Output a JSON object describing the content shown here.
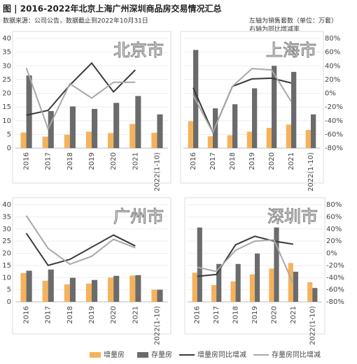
{
  "header": {
    "title": "图 | 2016-2022年北京上海广州深圳商品房交易情况汇总",
    "source": "数据来源：公司公告，数据截止到2022年10月31日",
    "notes": [
      "左轴为销售套数（单位：万套）",
      "右轴为同比增减率"
    ]
  },
  "chart_data": [
    {
      "type": "combo",
      "title": "北京市",
      "categories": [
        "2016",
        "2017",
        "2018",
        "2019",
        "2020",
        "2021",
        "2022(1-10)"
      ],
      "series": [
        {
          "name": "增量房",
          "type": "bar",
          "color": "#f5b25c",
          "values": [
            5.7,
            4.2,
            4.9,
            6,
            5.5,
            8.8,
            5.6
          ]
        },
        {
          "name": "存量房",
          "type": "bar",
          "color": "#6b6b6b",
          "values": [
            26.5,
            13.5,
            15.2,
            14.3,
            16.5,
            19,
            12.3
          ]
        },
        {
          "name": "增量房同比增减",
          "type": "line",
          "axis": "y2",
          "color": "#3a3a3a",
          "values": [
            -32,
            -25,
            12,
            44,
            2,
            34,
            null
          ]
        },
        {
          "name": "存量房同比增减",
          "type": "line",
          "axis": "y2",
          "color": "#a8a8a8",
          "values": [
            37,
            -52,
            14,
            -7,
            16,
            16,
            null
          ]
        }
      ],
      "ylim": [
        0,
        40
      ],
      "yticks": [
        0,
        5,
        10,
        15,
        20,
        25,
        30,
        35,
        40
      ],
      "y2lim": [
        -80,
        80
      ]
    },
    {
      "type": "combo",
      "title": "上海市",
      "categories": [
        "2016",
        "2017",
        "2018",
        "2019",
        "2020",
        "2021",
        "2022(1-10)"
      ],
      "series": [
        {
          "type": "bar",
          "color": "#f5b25c",
          "values": [
            9.8,
            4.3,
            4.7,
            6,
            7.4,
            8.6,
            6.6
          ]
        },
        {
          "type": "bar",
          "color": "#6b6b6b",
          "values": [
            35.8,
            14.5,
            16,
            21.8,
            30,
            27.8,
            12.3
          ]
        },
        {
          "type": "line",
          "axis": "y2",
          "color": "#3a3a3a",
          "values": [
            8,
            -57,
            10,
            21,
            22,
            15,
            null
          ]
        },
        {
          "type": "line",
          "axis": "y2",
          "color": "#a8a8a8",
          "values": [
            -3,
            -57,
            10,
            36,
            34,
            -12,
            null
          ]
        }
      ],
      "ylim": [
        0,
        40
      ],
      "y2lim": [
        -80,
        80
      ],
      "y2ticks": [
        {
          "value": -80,
          "label": "-80%"
        },
        {
          "value": -60,
          "label": "-60%"
        },
        {
          "value": -40,
          "label": "-40%"
        },
        {
          "value": -20,
          "label": "-20%"
        },
        {
          "value": 0,
          "label": "0%"
        },
        {
          "value": 20,
          "label": "20%"
        },
        {
          "value": 40,
          "label": "40%"
        },
        {
          "value": 60,
          "label": "60%"
        },
        {
          "value": 80,
          "label": "80%"
        }
      ]
    },
    {
      "type": "combo",
      "title": "广州市",
      "categories": [
        "2016",
        "2017",
        "2018",
        "2019",
        "2020",
        "2021",
        "2022(1-10)"
      ],
      "series": [
        {
          "type": "bar",
          "color": "#f5b25c",
          "values": [
            11.8,
            8.7,
            7.2,
            7.5,
            10,
            10.8,
            5
          ]
        },
        {
          "type": "bar",
          "color": "#6b6b6b",
          "values": [
            12.8,
            13.3,
            9.9,
            9,
            10.7,
            11,
            5
          ]
        },
        {
          "type": "line",
          "axis": "y2",
          "color": "#3a3a3a",
          "values": [
            33,
            -20,
            -10,
            10,
            30,
            12,
            null
          ]
        },
        {
          "type": "line",
          "axis": "y2",
          "color": "#a8a8a8",
          "values": [
            62,
            8,
            -18,
            -5,
            23,
            9,
            null
          ]
        }
      ],
      "ylim": [
        0,
        40
      ],
      "yticks": [
        0,
        5,
        10,
        15,
        20,
        25,
        30,
        35,
        40
      ],
      "y2lim": [
        -80,
        80
      ]
    },
    {
      "type": "combo",
      "title": "深圳市",
      "categories": [
        "2016",
        "2017",
        "2018",
        "2019",
        "2020",
        "2021",
        "2022(1-10)"
      ],
      "series": [
        {
          "type": "bar",
          "color": "#f5b25c",
          "values": [
            12,
            6.9,
            8.4,
            11.3,
            13.7,
            16,
            8.1
          ]
        },
        {
          "type": "bar",
          "color": "#6b6b6b",
          "values": [
            30.6,
            15.6,
            15.6,
            19.9,
            30.6,
            12.4,
            5.7
          ]
        },
        {
          "type": "line",
          "axis": "y2",
          "color": "#3a3a3a",
          "values": [
            -38,
            -35,
            14,
            28,
            20,
            15,
            null
          ]
        },
        {
          "type": "line",
          "axis": "y2",
          "color": "#a8a8a8",
          "values": [
            -23,
            -30,
            5,
            20,
            22,
            -50,
            null
          ]
        }
      ],
      "ylim": [
        0,
        40
      ],
      "y2lim": [
        -80,
        80
      ],
      "y2ticks": [
        {
          "value": -80,
          "label": "-80%"
        },
        {
          "value": -60,
          "label": "-60%"
        },
        {
          "value": -40,
          "label": "-40%"
        },
        {
          "value": -20,
          "label": "-20%"
        },
        {
          "value": 0,
          "label": "0%"
        },
        {
          "value": 20,
          "label": "20%"
        },
        {
          "value": 40,
          "label": "40%"
        },
        {
          "value": 60,
          "label": "60%"
        },
        {
          "value": 80,
          "label": "80%"
        }
      ]
    }
  ]
}
